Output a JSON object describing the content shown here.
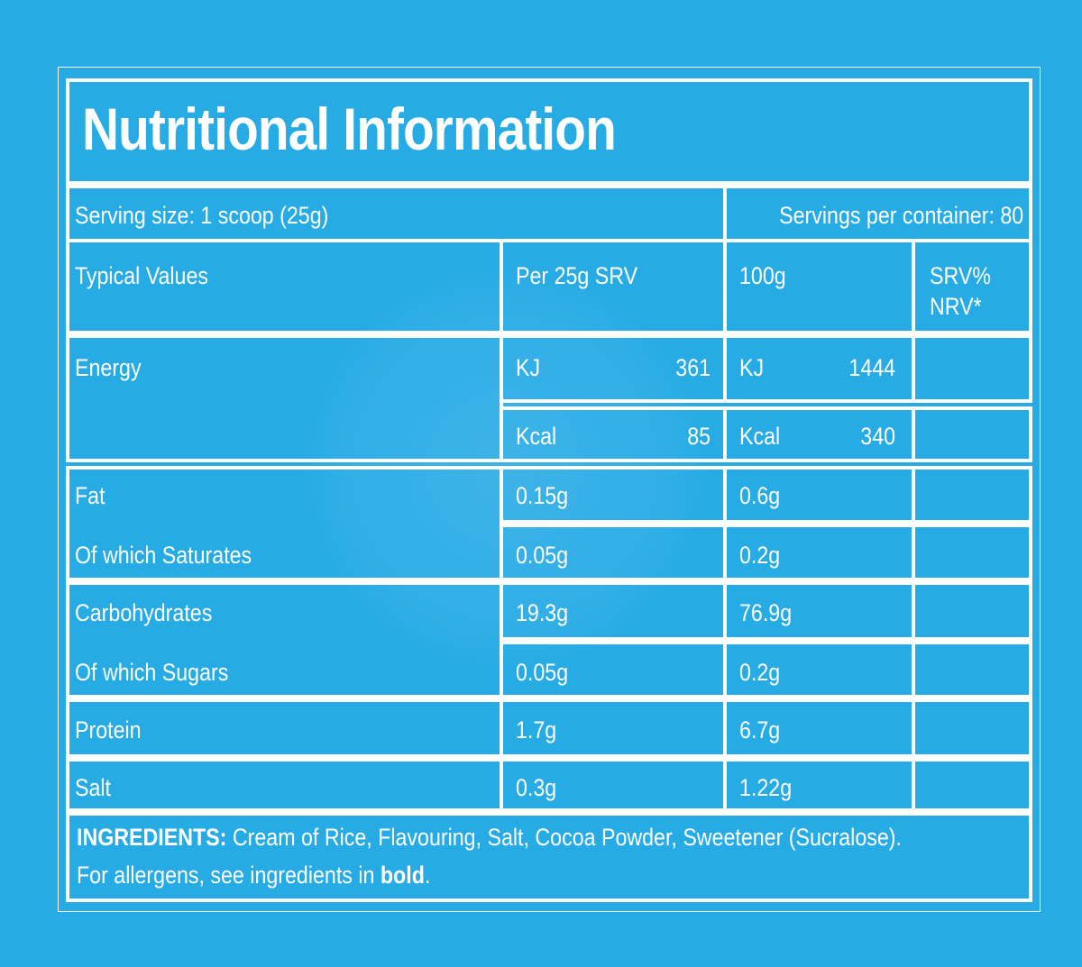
{
  "title": "Nutritional Information",
  "serving": {
    "size": "Serving size: 1 scoop (25g)",
    "per_container": "Servings per container: 80"
  },
  "headers": {
    "typical_values": "Typical Values",
    "per_serving": "Per 25g SRV",
    "per_100g": "100g",
    "nrv_line1": "SRV%",
    "nrv_line2": "NRV*"
  },
  "energy": {
    "label": "Energy",
    "kj_label": "KJ",
    "kcal_label": "Kcal",
    "kj_serving": "361",
    "kcal_serving": "85",
    "kj_100g": "1444",
    "kcal_100g": "340"
  },
  "rows": [
    {
      "label": "Fat",
      "serving": "0.15g",
      "per100": "0.6g"
    },
    {
      "label": "Of which Saturates",
      "serving": "0.05g",
      "per100": "0.2g"
    },
    {
      "label": "Carbohydrates",
      "serving": "19.3g",
      "per100": "76.9g"
    },
    {
      "label": "Of which Sugars",
      "serving": "0.05g",
      "per100": "0.2g"
    },
    {
      "label": "Protein",
      "serving": "1.7g",
      "per100": "6.7g"
    },
    {
      "label": "Salt",
      "serving": "0.3g",
      "per100": "1.22g"
    }
  ],
  "ingredients": {
    "heading": "INGREDIENTS:",
    "list": " Cream of Rice, Flavouring, Salt, Cocoa Powder, Sweetener (Sucralose).",
    "allergen_prefix": "For allergens, see ingredients in ",
    "allergen_bold": "bold",
    "allergen_suffix": "."
  },
  "colors": {
    "background": "#27abe5",
    "lines": "#ffffff"
  }
}
